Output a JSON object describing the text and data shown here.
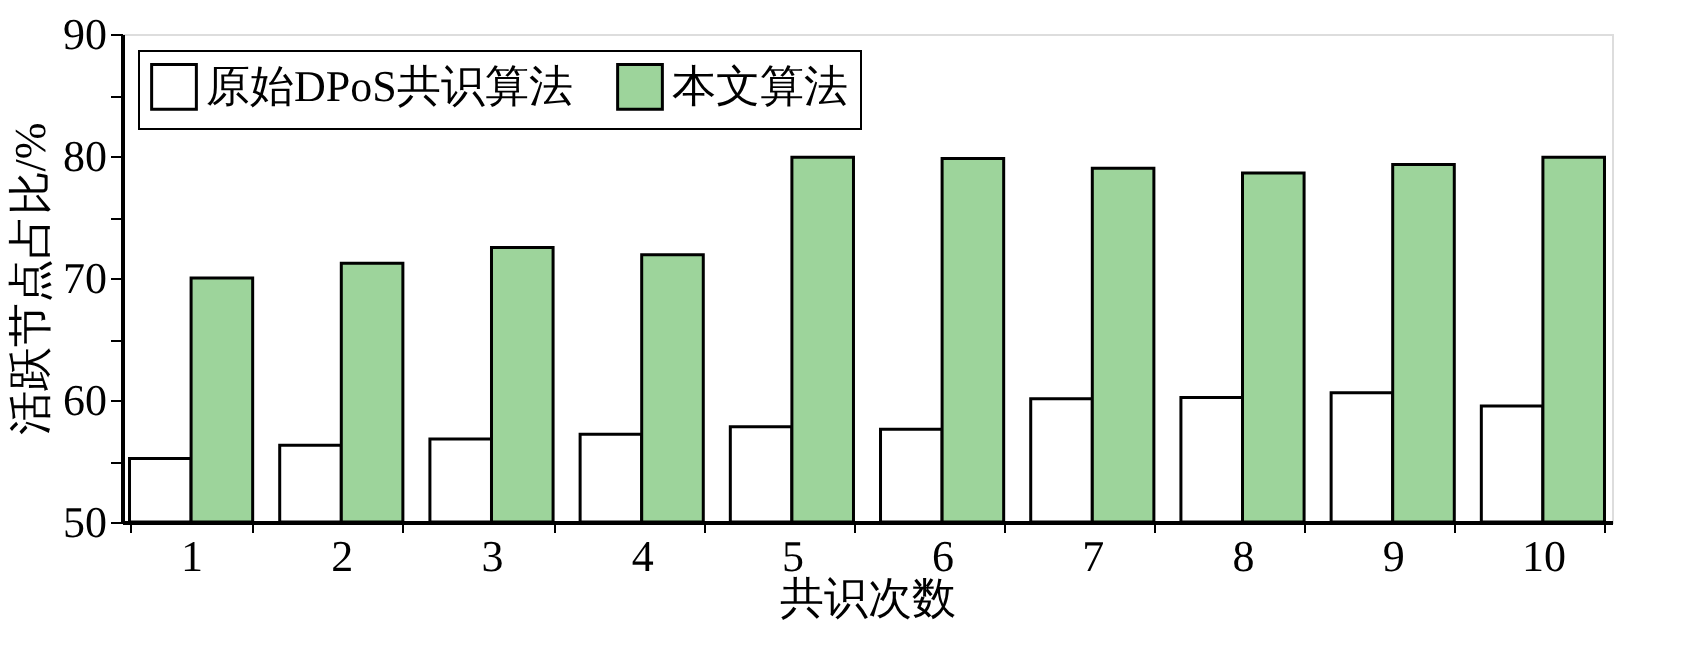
{
  "chart_data": {
    "type": "bar",
    "xlabel": "共识次数",
    "ylabel": "活跃节点占比/%",
    "categories": [
      "1",
      "2",
      "3",
      "4",
      "5",
      "6",
      "7",
      "8",
      "9",
      "10"
    ],
    "series": [
      {
        "name": "原始DPoS共识算法",
        "color": "#ffffff",
        "values": [
          55.2,
          56.3,
          56.8,
          57.2,
          57.8,
          57.6,
          60.1,
          60.2,
          60.6,
          59.5
        ]
      },
      {
        "name": "本文算法",
        "color": "#9dd49b",
        "values": [
          70.0,
          71.2,
          72.5,
          71.9,
          79.9,
          79.8,
          79.0,
          78.6,
          79.3,
          79.9
        ]
      }
    ],
    "ylim": [
      50,
      90
    ],
    "yticks": [
      50,
      {
        "value": 55,
        "label": null
      },
      60,
      {
        "value": 65,
        "label": null
      },
      70,
      {
        "value": 75,
        "label": null
      },
      80,
      {
        "value": 85,
        "label": null
      },
      90
    ],
    "grid": false,
    "legend": "top left"
  }
}
